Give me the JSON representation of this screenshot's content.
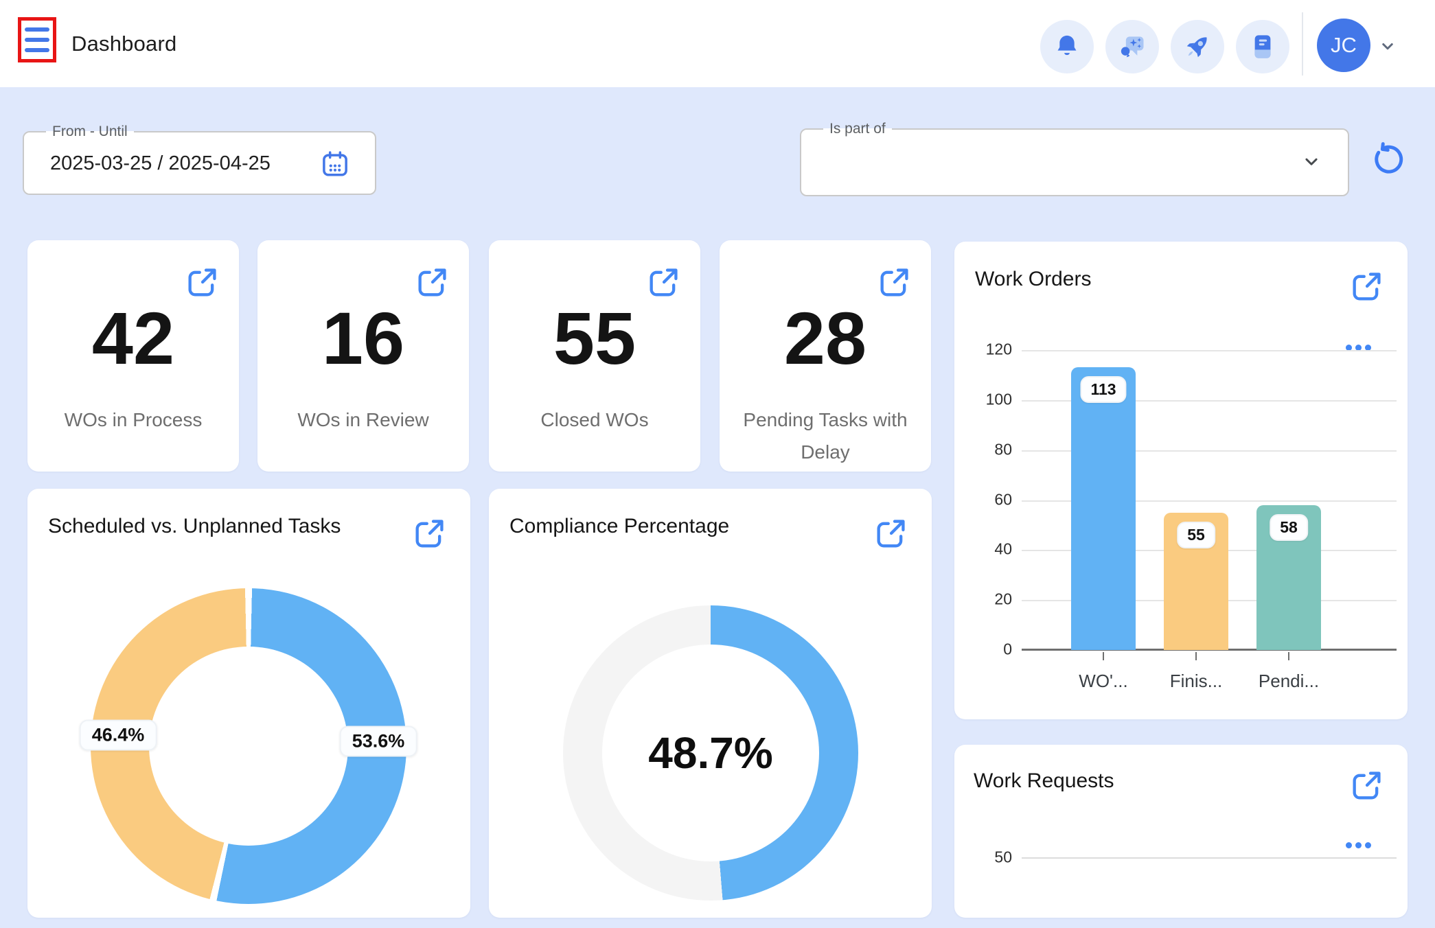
{
  "header": {
    "title": "Dashboard",
    "menu_icon": "hamburger-menu",
    "avatar_initials": "JC",
    "action_icons": [
      "bell",
      "chat-sparkle",
      "rocket",
      "notebook"
    ]
  },
  "filters": {
    "date_range": {
      "label": "From - Until",
      "value": "2025-03-25 / 2025-04-25",
      "icon": "calendar"
    },
    "is_part_of": {
      "label": "Is part of",
      "value": "",
      "icon": "chevron-down"
    },
    "refresh_icon": "refresh"
  },
  "kpis": [
    {
      "value": "42",
      "label": "WOs in Process"
    },
    {
      "value": "16",
      "label": "WOs in Review"
    },
    {
      "value": "55",
      "label": "Closed WOs"
    },
    {
      "value": "28",
      "label": "Pending Tasks with Delay"
    }
  ],
  "charts": {
    "work_orders": {
      "title": "Work Orders",
      "type": "bar",
      "categories": [
        "WO'...",
        "Finis...",
        "Pendi..."
      ],
      "values": [
        113,
        55,
        58
      ],
      "bar_colors": [
        "#61B2F4",
        "#FACB80",
        "#7FC5BC"
      ],
      "y_ticks": [
        120,
        100,
        80,
        60,
        40,
        20,
        0
      ],
      "ymax": 120
    },
    "scheduled_vs_unplanned": {
      "title": "Scheduled vs. Unplanned Tasks",
      "type": "donut",
      "slices": [
        {
          "label": "53.6%",
          "value": 53.6,
          "color": "#61B2F4"
        },
        {
          "label": "46.4%",
          "value": 46.4,
          "color": "#FACB80"
        }
      ]
    },
    "compliance": {
      "title": "Compliance Percentage",
      "type": "gauge-donut",
      "value": 48.7,
      "center_label": "48.7%",
      "color": "#61B2F4",
      "track_color": "#F4F4F4"
    },
    "work_requests": {
      "title": "Work Requests",
      "type": "bar",
      "visible_y_tick": "50"
    }
  },
  "chart_data": [
    {
      "type": "bar",
      "title": "Work Orders",
      "categories": [
        "WO'...",
        "Finis...",
        "Pendi..."
      ],
      "values": [
        113,
        55,
        58
      ],
      "ylim": [
        0,
        120
      ],
      "grid": true,
      "legend": "none"
    },
    {
      "type": "pie",
      "title": "Scheduled vs. Unplanned Tasks",
      "labels": [
        "53.6%",
        "46.4%"
      ],
      "values": [
        53.6,
        46.4
      ],
      "legend": "none"
    },
    {
      "type": "pie",
      "title": "Compliance Percentage",
      "labels": [
        "48.7%",
        ""
      ],
      "values": [
        48.7,
        51.3
      ],
      "center_label": "48.7%"
    },
    {
      "type": "bar",
      "title": "Work Requests",
      "visible_ticks": [
        50
      ]
    }
  ],
  "colors": {
    "background": "#DFE8FC",
    "accent_blue": "#4377E8",
    "link_blue": "#4287F5",
    "highlight_red": "#E81515",
    "bar_blue": "#61B2F4",
    "bar_orange": "#FACB80",
    "bar_teal": "#7FC5BC",
    "gauge_track": "#F4F4F4"
  }
}
